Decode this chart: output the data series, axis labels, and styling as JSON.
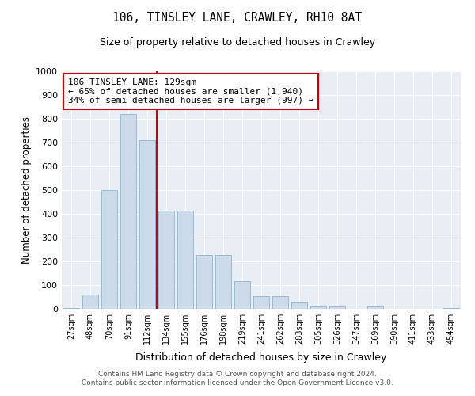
{
  "title": "106, TINSLEY LANE, CRAWLEY, RH10 8AT",
  "subtitle": "Size of property relative to detached houses in Crawley",
  "xlabel": "Distribution of detached houses by size in Crawley",
  "ylabel": "Number of detached properties",
  "bin_labels": [
    "27sqm",
    "48sqm",
    "70sqm",
    "91sqm",
    "112sqm",
    "134sqm",
    "155sqm",
    "176sqm",
    "198sqm",
    "219sqm",
    "241sqm",
    "262sqm",
    "283sqm",
    "305sqm",
    "326sqm",
    "347sqm",
    "369sqm",
    "390sqm",
    "411sqm",
    "433sqm",
    "454sqm"
  ],
  "bin_values": [
    5,
    60,
    500,
    820,
    710,
    415,
    415,
    228,
    228,
    117,
    55,
    55,
    30,
    15,
    15,
    0,
    15,
    0,
    0,
    0,
    5
  ],
  "bar_color": "#ccdaea",
  "bar_edge_color": "#7aaac8",
  "vline_index": 4.5,
  "vline_color": "#cc0000",
  "annotation_text": "106 TINSLEY LANE: 129sqm\n← 65% of detached houses are smaller (1,940)\n34% of semi-detached houses are larger (997) →",
  "annotation_box_color": "#ffffff",
  "annotation_box_edge": "#cc0000",
  "ylim": [
    0,
    1000
  ],
  "yticks": [
    0,
    100,
    200,
    300,
    400,
    500,
    600,
    700,
    800,
    900,
    1000
  ],
  "bg_color": "#e8eef4",
  "footer_line1": "Contains HM Land Registry data © Crown copyright and database right 2024.",
  "footer_line2": "Contains public sector information licensed under the Open Government Licence v3.0."
}
